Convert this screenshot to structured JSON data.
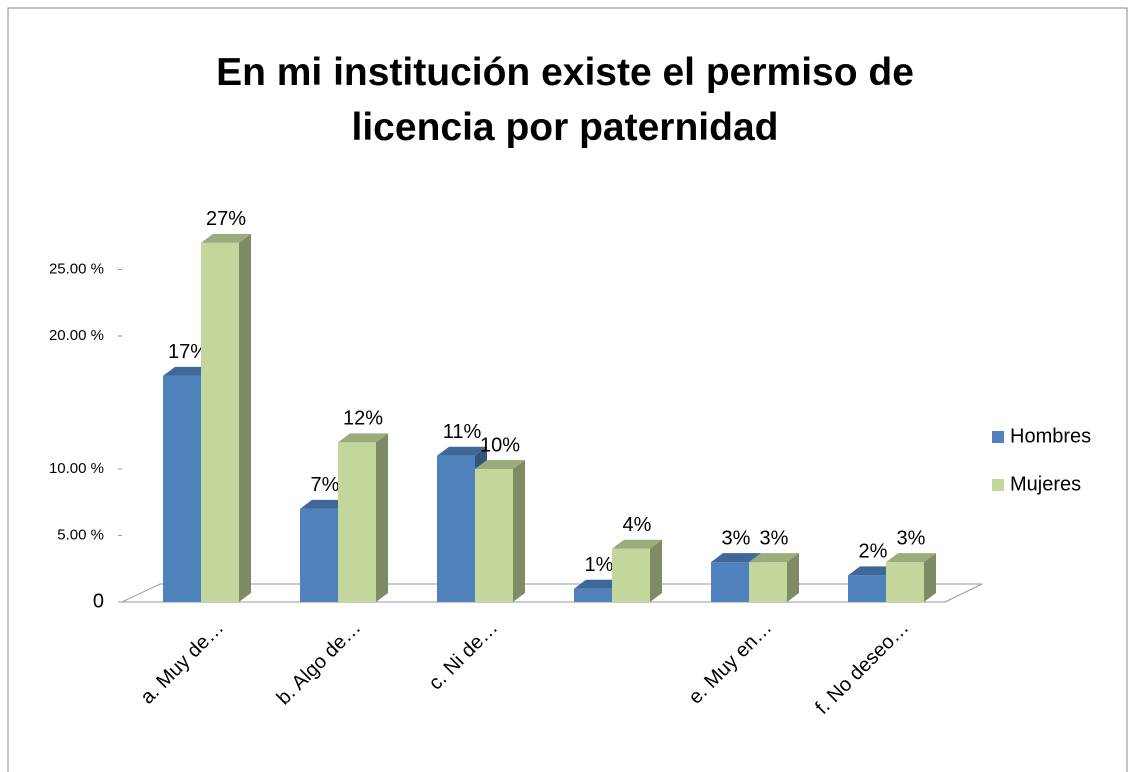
{
  "chart_data": {
    "type": "bar",
    "three_d": true,
    "title": "En mi institución existe el permiso de licencia por paternidad",
    "categories": [
      "a. Muy de…",
      "b. Algo de…",
      "c. Ni de…",
      null,
      "e. Muy en…",
      "f. No deseo…"
    ],
    "series": [
      {
        "name": "Hombres",
        "color": "#4f81bd",
        "values": [
          17,
          7,
          11,
          1,
          3,
          2
        ],
        "value_labels": [
          "17%",
          "7%",
          "11%",
          "1%",
          "3%",
          "2%"
        ]
      },
      {
        "name": "Mujeres",
        "color": "#c3d69b",
        "values": [
          27,
          12,
          10,
          4,
          3,
          3
        ],
        "value_labels": [
          "27%",
          "12%",
          "10%",
          "4%",
          "3%",
          "3%"
        ]
      }
    ],
    "ylim": [
      0,
      30
    ],
    "yticks": [
      {
        "value": 0,
        "label": "0"
      },
      {
        "value": 5,
        "label": "5.00 %"
      },
      {
        "value": 10,
        "label": "10.00 %"
      },
      {
        "value": 20,
        "label": "20.00 %"
      },
      {
        "value": 25,
        "label": "25.00 %"
      }
    ],
    "legend": "right"
  }
}
